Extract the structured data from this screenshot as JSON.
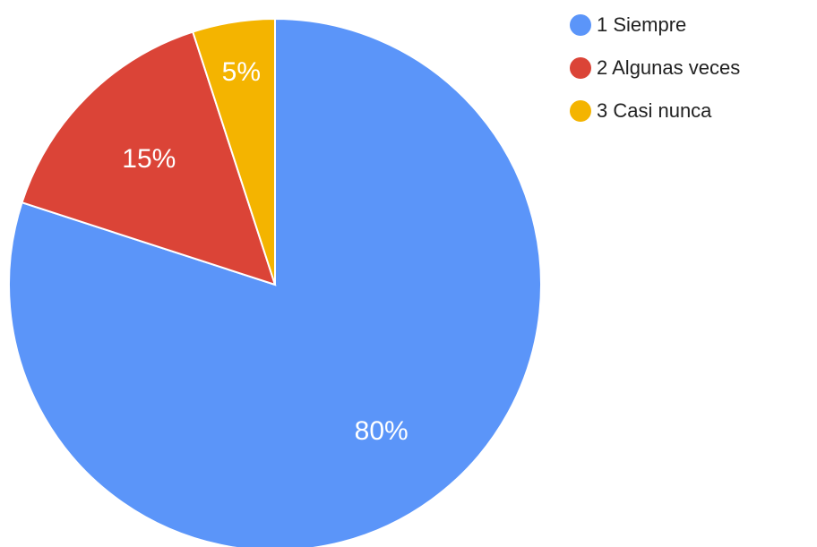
{
  "chart_data": {
    "type": "pie",
    "slices": [
      {
        "name": "1 Siempre",
        "value": 80,
        "label": "80%",
        "color": "#5b95f9"
      },
      {
        "name": "2 Algunas veces",
        "value": 15,
        "label": "15%",
        "color": "#db4437"
      },
      {
        "name": "3 Casi nunca",
        "value": 5,
        "label": "5%",
        "color": "#f4b400"
      }
    ],
    "legend": {
      "position": "top-right"
    }
  }
}
